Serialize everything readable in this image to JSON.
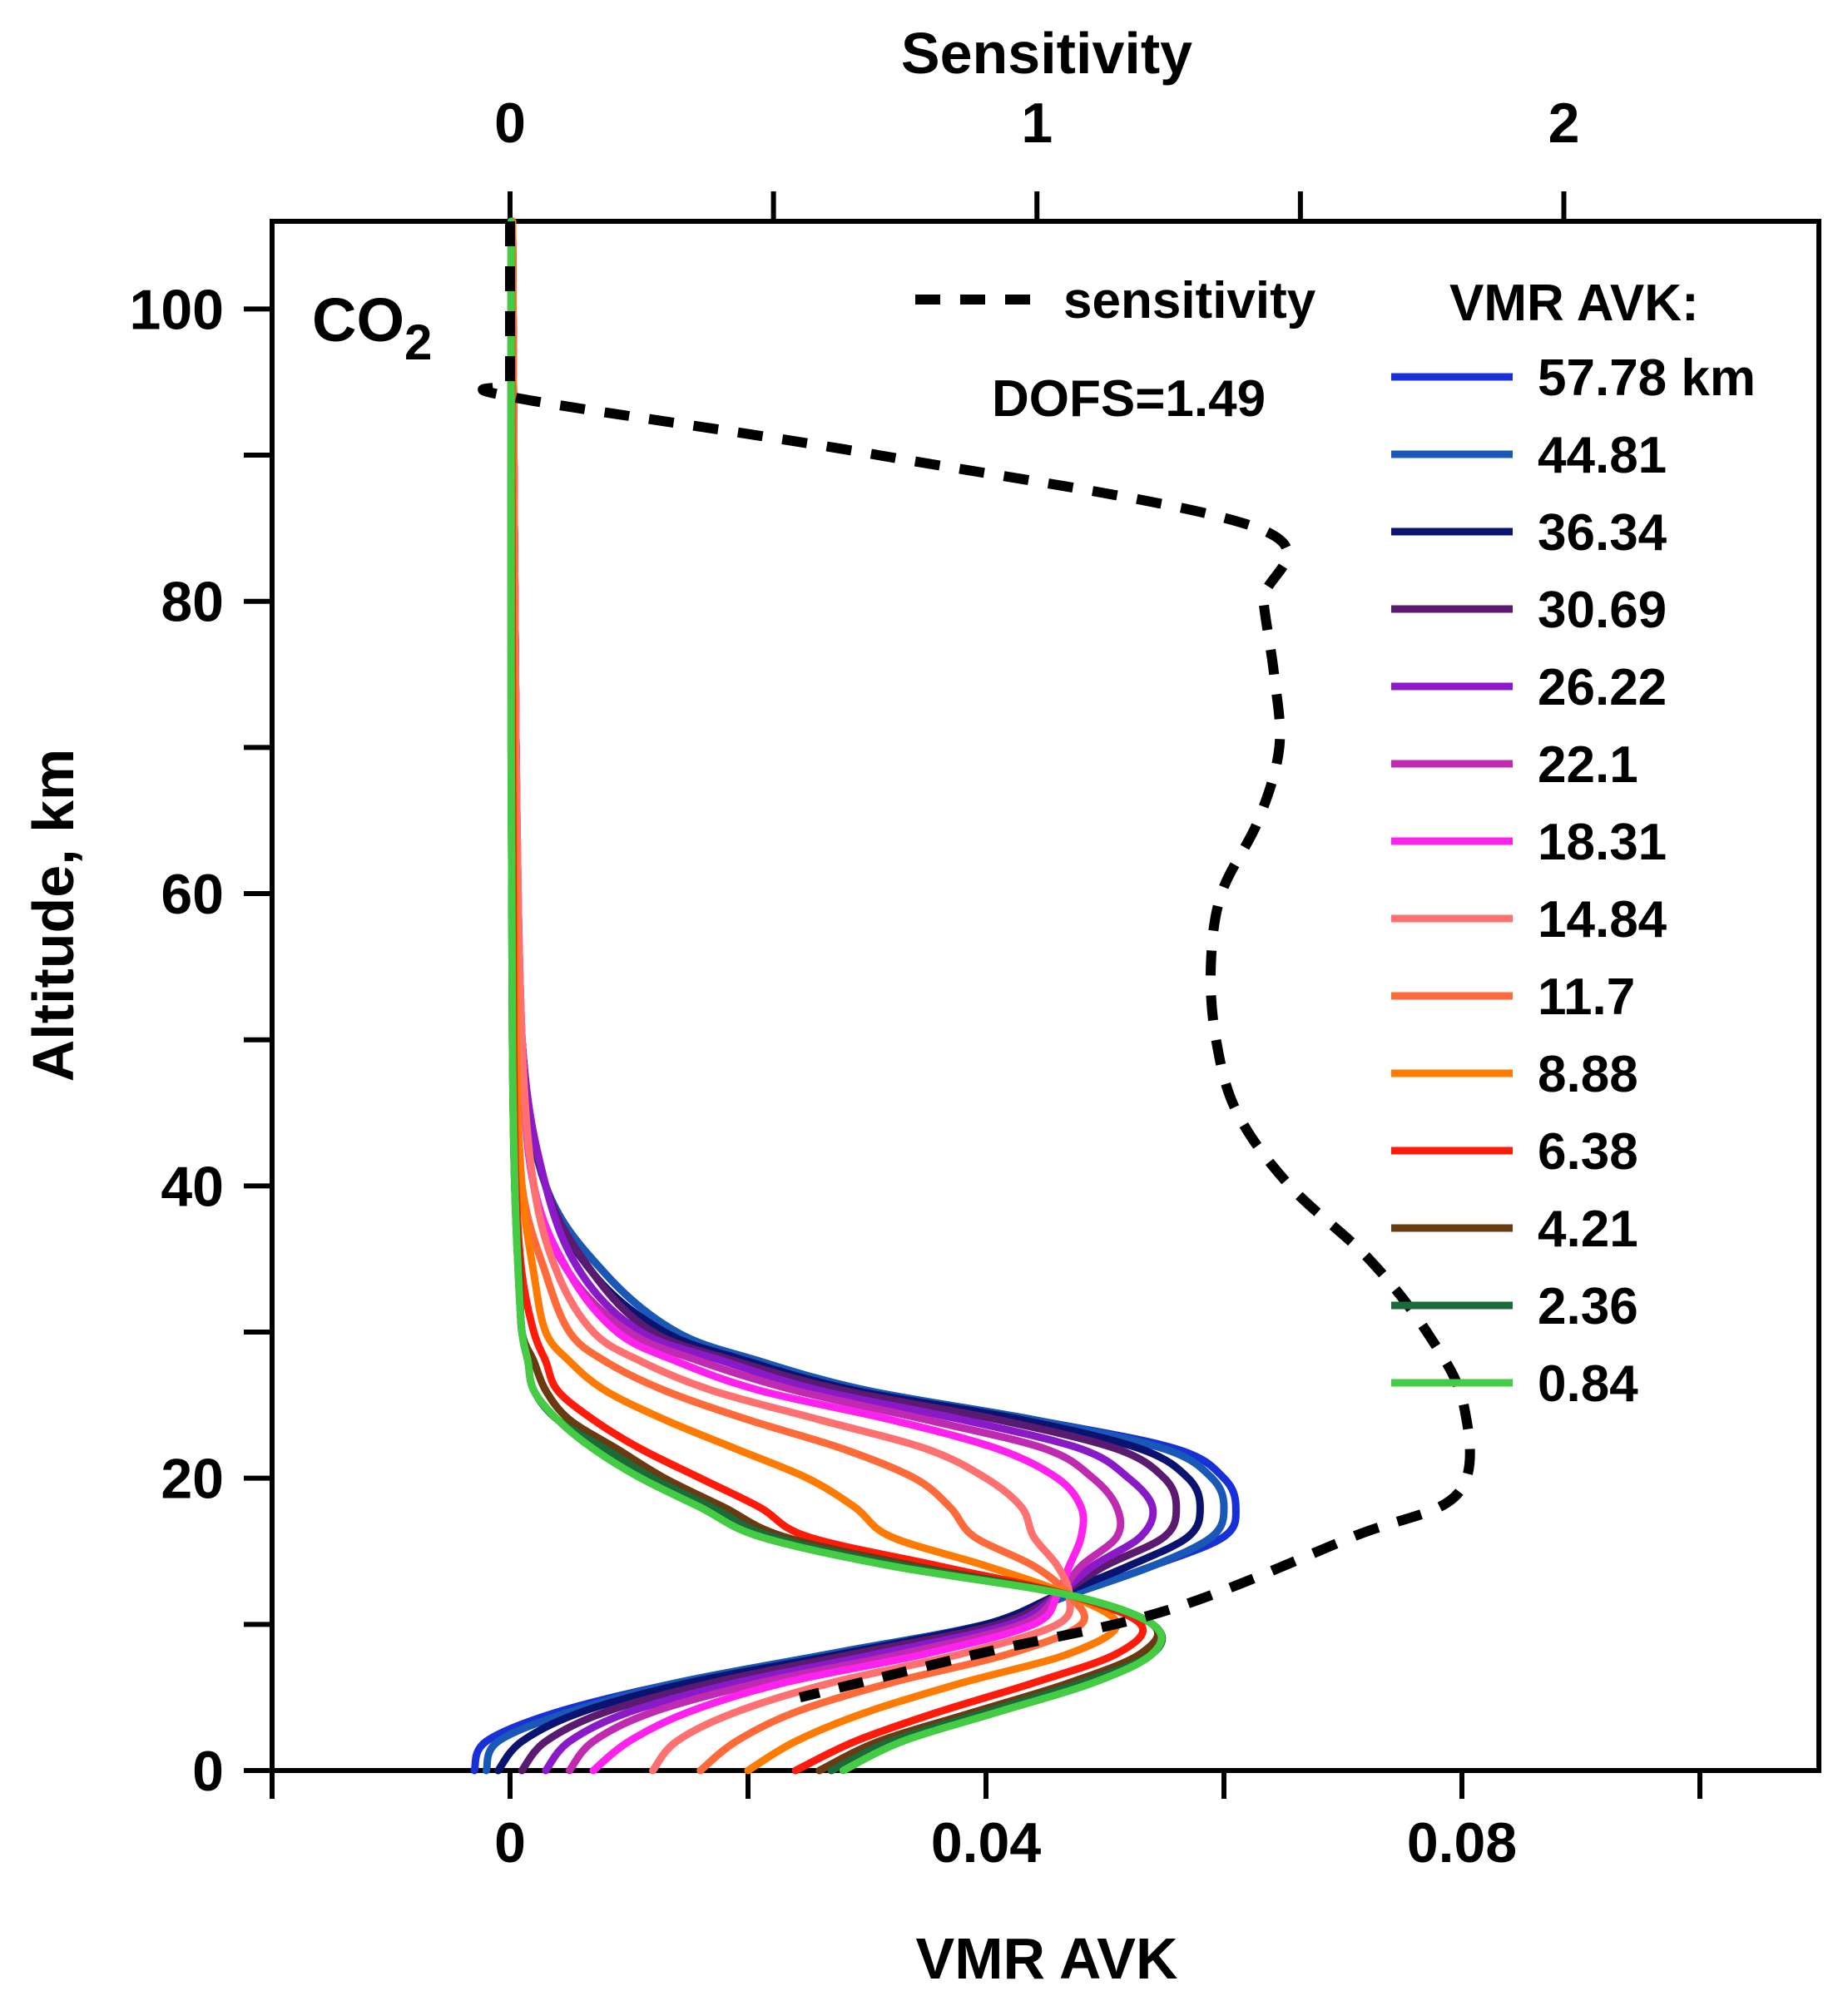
{
  "chart_data": {
    "type": "line",
    "title": "",
    "species_label": {
      "main": "CO",
      "subscript": "2"
    },
    "dofs_text": "DOFS=1.49",
    "xlabel": "VMR AVK",
    "x2label": "Sensitivity",
    "ylabel": "Altitude, km",
    "xlim": [
      -0.02,
      0.11
    ],
    "x2lim": [
      -0.4516,
      2.484
    ],
    "ylim": [
      0,
      106
    ],
    "x_ticks": [
      -0.02,
      0,
      0.02,
      0.04,
      0.06,
      0.08,
      0.1
    ],
    "x_tick_labels": [
      "0",
      "0.04",
      "0.08"
    ],
    "x_tick_label_values": [
      0,
      0.04,
      0.08
    ],
    "x2_ticks": [
      0,
      0.5,
      1,
      1.5,
      2
    ],
    "x2_tick_labels": [
      "0",
      "1",
      "2"
    ],
    "x2_tick_label_values": [
      0,
      1,
      2
    ],
    "y_ticks": [
      0,
      10,
      20,
      30,
      40,
      50,
      60,
      70,
      80,
      90,
      100
    ],
    "y_tick_labels": [
      "0",
      "20",
      "40",
      "60",
      "80",
      "100"
    ],
    "y_tick_label_values": [
      0,
      20,
      40,
      60,
      80,
      100
    ],
    "legend_title": "VMR AVK:",
    "sensitivity_legend_label": "sensitivity",
    "sensitivity": {
      "name": "sensitivity",
      "x": [
        0.0,
        0.0,
        0.0,
        0.0,
        0.0,
        0.7,
        1.42,
        1.43,
        1.45,
        1.46,
        1.42,
        1.35,
        1.33,
        1.34,
        1.38,
        1.48,
        1.63,
        1.74,
        1.81,
        1.8,
        1.6,
        1.25,
        0.89,
        0.55
      ],
      "y": [
        106,
        102,
        98,
        95,
        94,
        90,
        85,
        80,
        75,
        70,
        65,
        60,
        55,
        50,
        45,
        40,
        35,
        30,
        25,
        19,
        16,
        11,
        8,
        5
      ]
    },
    "series": [
      {
        "name": "57.78 km",
        "color": "#1730d8",
        "values": [
          -0.003,
          -0.002,
          0.004,
          0.014,
          0.027,
          0.04,
          0.047,
          0.054,
          0.06,
          0.061,
          0.06,
          0.056,
          0.044,
          0.03,
          0.021,
          0.014,
          0.008,
          0.003,
          0.001,
          0.0005,
          0.0002
        ]
      },
      {
        "name": "44.81",
        "color": "#1a58b8",
        "values": [
          -0.002,
          -0.001,
          0.005,
          0.014,
          0.027,
          0.04,
          0.047,
          0.054,
          0.059,
          0.06,
          0.059,
          0.055,
          0.044,
          0.03,
          0.021,
          0.014,
          0.008,
          0.003,
          0.001,
          0.0005,
          0.0002
        ]
      },
      {
        "name": "36.34",
        "color": "#0a1470",
        "values": [
          -0.001,
          0.001,
          0.006,
          0.015,
          0.028,
          0.04,
          0.046,
          0.052,
          0.057,
          0.058,
          0.057,
          0.053,
          0.043,
          0.029,
          0.02,
          0.013,
          0.007,
          0.003,
          0.001,
          0.0005,
          0.0002
        ]
      },
      {
        "name": "30.69",
        "color": "#5a1a70",
        "values": [
          0.001,
          0.003,
          0.008,
          0.017,
          0.029,
          0.041,
          0.046,
          0.05,
          0.055,
          0.056,
          0.055,
          0.051,
          0.041,
          0.028,
          0.019,
          0.012,
          0.007,
          0.003,
          0.001,
          0.0005,
          0.0002
        ]
      },
      {
        "name": "26.22",
        "color": "#8a1ac8",
        "values": [
          0.003,
          0.005,
          0.01,
          0.019,
          0.031,
          0.042,
          0.046,
          0.049,
          0.053,
          0.054,
          0.052,
          0.048,
          0.038,
          0.026,
          0.018,
          0.011,
          0.006,
          0.003,
          0.001,
          0.0005,
          0.0002
        ]
      },
      {
        "name": "22.1",
        "color": "#c02ab0",
        "values": [
          0.005,
          0.007,
          0.012,
          0.021,
          0.033,
          0.043,
          0.046,
          0.048,
          0.051,
          0.051,
          0.049,
          0.045,
          0.035,
          0.024,
          0.016,
          0.01,
          0.005,
          0.002,
          0.001,
          0.0005,
          0.0002
        ]
      },
      {
        "name": "18.31",
        "color": "#ff22ee",
        "values": [
          0.007,
          0.01,
          0.015,
          0.023,
          0.035,
          0.044,
          0.046,
          0.047,
          0.048,
          0.048,
          0.046,
          0.041,
          0.032,
          0.021,
          0.014,
          0.009,
          0.005,
          0.002,
          0.001,
          0.0005,
          0.0002
        ]
      },
      {
        "name": "14.84",
        "color": "#ff7070",
        "values": [
          0.012,
          0.014,
          0.019,
          0.027,
          0.038,
          0.046,
          0.047,
          0.046,
          0.044,
          0.043,
          0.04,
          0.035,
          0.026,
          0.017,
          0.011,
          0.007,
          0.004,
          0.002,
          0.001,
          0.0005,
          0.0002
        ]
      },
      {
        "name": "11.7",
        "color": "#ff6a3a",
        "values": [
          0.016,
          0.019,
          0.024,
          0.032,
          0.042,
          0.048,
          0.047,
          0.044,
          0.039,
          0.037,
          0.034,
          0.028,
          0.02,
          0.013,
          0.008,
          0.005,
          0.003,
          0.001,
          0.0005,
          0.0003,
          0.0002
        ]
      },
      {
        "name": "8.88",
        "color": "#ff7a00",
        "values": [
          0.02,
          0.024,
          0.03,
          0.038,
          0.047,
          0.051,
          0.047,
          0.04,
          0.032,
          0.029,
          0.025,
          0.019,
          0.013,
          0.008,
          0.005,
          0.003,
          0.002,
          0.001,
          0.0005,
          0.0003,
          0.0002
        ]
      },
      {
        "name": "6.38",
        "color": "#ff1a0a",
        "values": [
          0.024,
          0.029,
          0.036,
          0.044,
          0.051,
          0.053,
          0.047,
          0.036,
          0.025,
          0.021,
          0.016,
          0.011,
          0.007,
          0.004,
          0.003,
          0.002,
          0.001,
          0.0005,
          0.0003,
          0.0002,
          0.0001
        ]
      },
      {
        "name": "4.21",
        "color": "#6a3a10",
        "values": [
          0.026,
          0.031,
          0.039,
          0.047,
          0.053,
          0.054,
          0.047,
          0.034,
          0.023,
          0.018,
          0.013,
          0.009,
          0.005,
          0.003,
          0.002,
          0.001,
          0.0008,
          0.0004,
          0.0002,
          0.0001,
          0.0001
        ]
      },
      {
        "name": "2.36",
        "color": "#1a6a3a",
        "values": [
          0.027,
          0.032,
          0.04,
          0.048,
          0.054,
          0.054,
          0.047,
          0.033,
          0.022,
          0.017,
          0.012,
          0.008,
          0.004,
          0.002,
          0.0015,
          0.001,
          0.0007,
          0.0004,
          0.0002,
          0.0001,
          0.0001
        ]
      },
      {
        "name": "0.84",
        "color": "#44cc44",
        "values": [
          0.028,
          0.033,
          0.041,
          0.049,
          0.054,
          0.054,
          0.047,
          0.032,
          0.021,
          0.016,
          0.011,
          0.007,
          0.004,
          0.002,
          0.0015,
          0.001,
          0.0007,
          0.0004,
          0.0002,
          0.0001,
          0.0001
        ]
      }
    ],
    "series_altitudes": [
      0,
      2,
      4,
      6,
      8,
      10,
      12,
      14,
      16,
      18,
      20,
      22,
      24,
      26,
      28,
      30,
      34,
      40,
      50,
      70,
      106
    ]
  }
}
